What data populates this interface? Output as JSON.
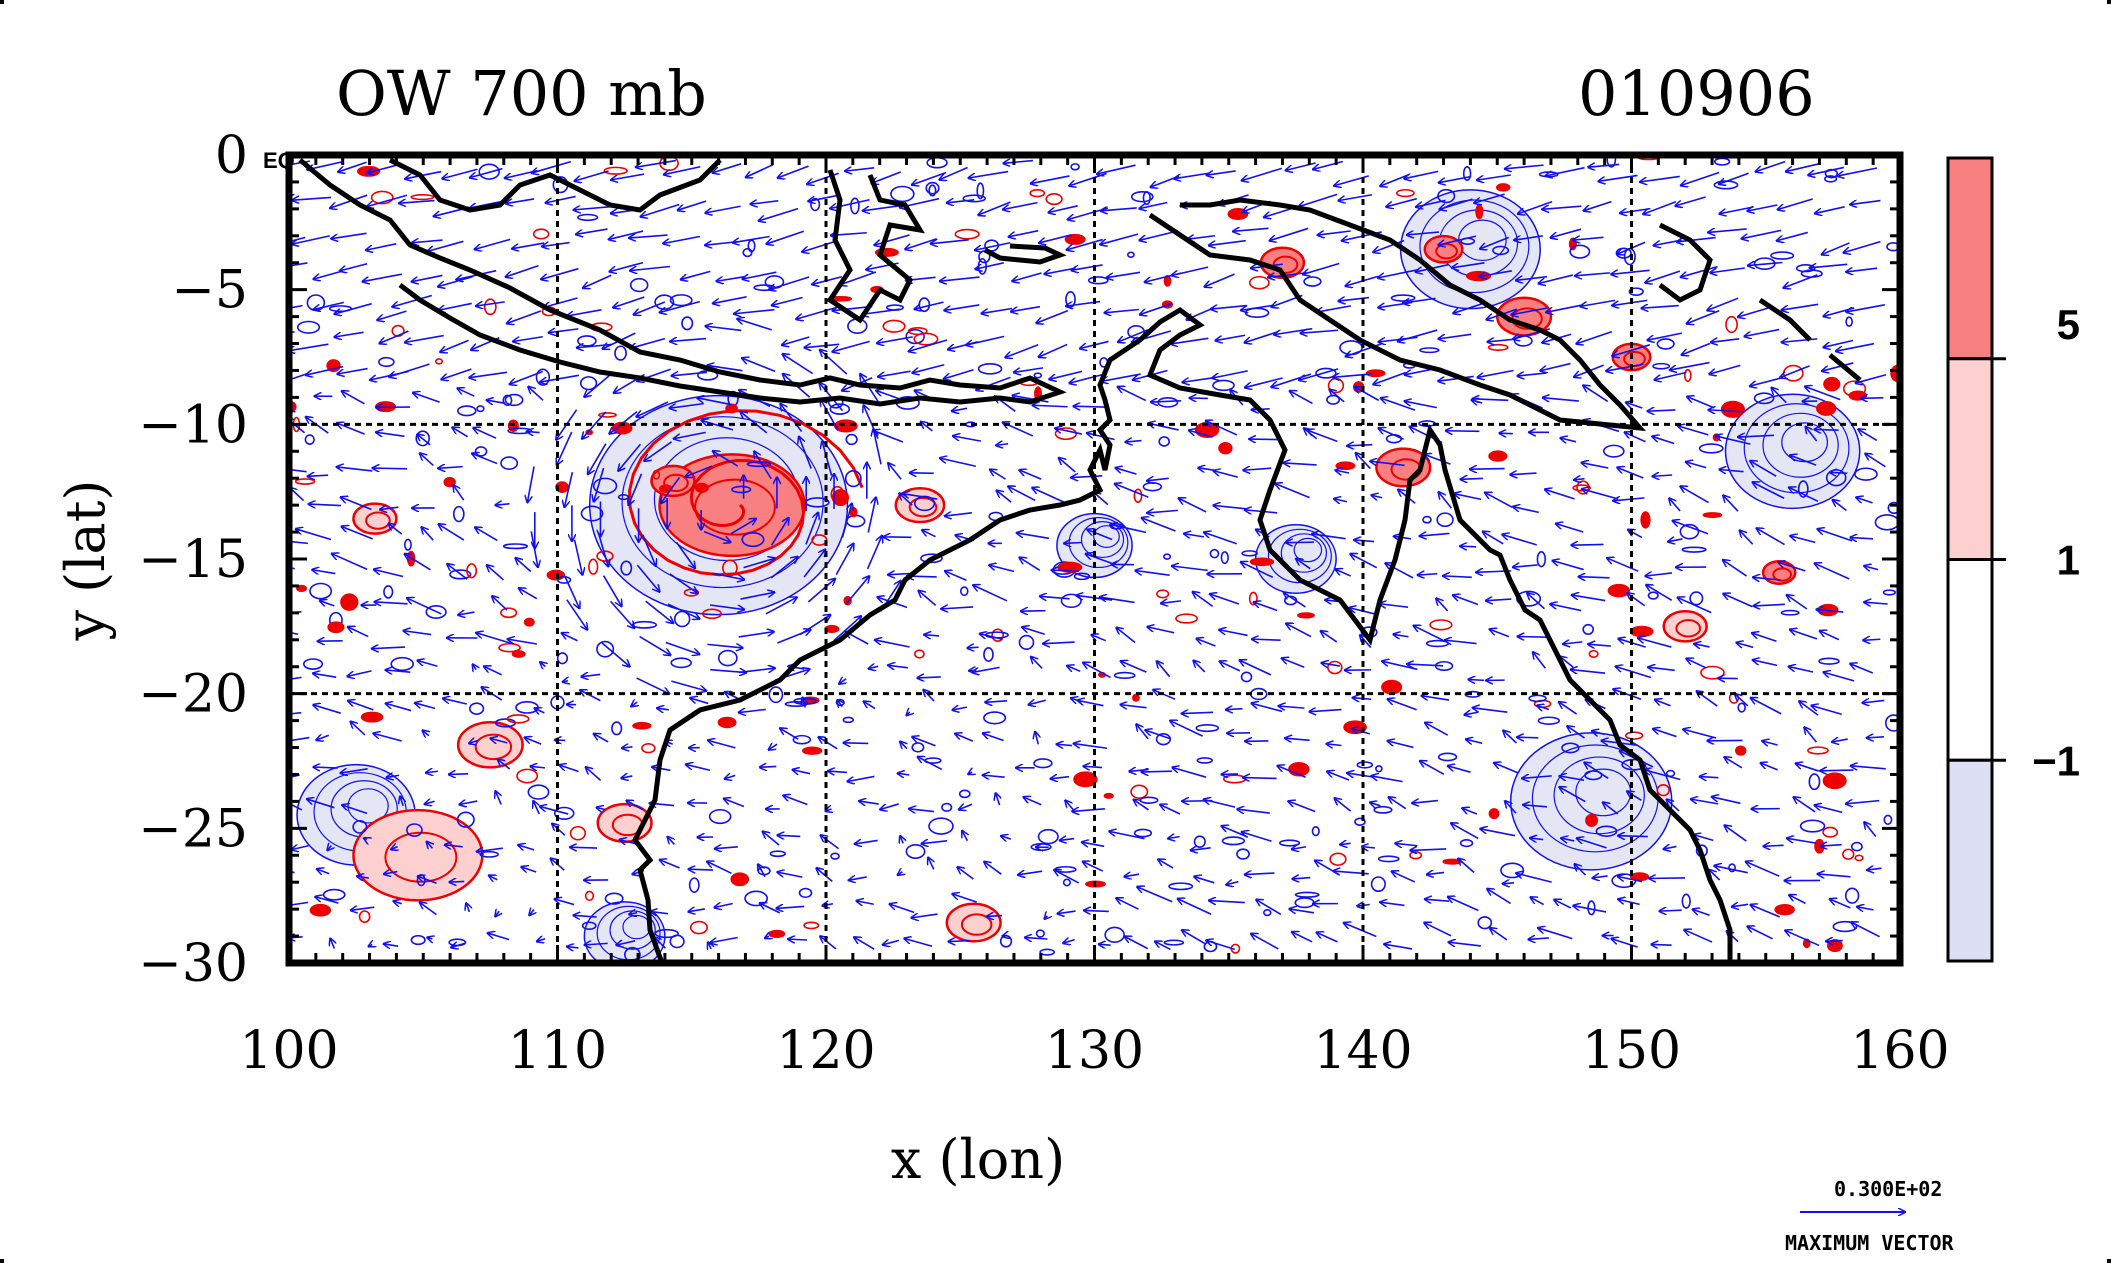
{
  "chart_data": {
    "type": "heatmap",
    "title": "OW 700 mb",
    "date_label": "010906",
    "xlabel": "x (lon)",
    "ylabel": "y (lat)",
    "xlim": [
      100,
      160
    ],
    "ylim": [
      -30,
      0
    ],
    "x_ticks": [
      100,
      110,
      120,
      130,
      140,
      150,
      160
    ],
    "y_ticks": [
      0,
      -5,
      -10,
      -15,
      -20,
      -25,
      -30
    ],
    "y_tick_labels": [
      "0",
      "−5",
      "−10",
      "−15",
      "−20",
      "−25",
      "−30"
    ],
    "x_tick_labels": [
      "100",
      "110",
      "120",
      "130",
      "140",
      "150",
      "160"
    ],
    "eq_label": "EQ",
    "grid_lon": [
      110,
      120,
      130,
      140,
      150
    ],
    "grid_lat": [
      -10,
      -20
    ],
    "colorbar": {
      "levels": [
        -1,
        1,
        5
      ],
      "level_labels": [
        "−1",
        "1",
        "5"
      ],
      "colors": [
        "#dde0f4",
        "#ffffff",
        "#fdd0d0",
        "#f98080"
      ]
    },
    "vector_reference": {
      "value_label": "0.300E+02",
      "caption": "MAXIMUM VECTOR",
      "color": "#1111ee"
    },
    "series": [
      {
        "name": "positive OW (red contours)",
        "color": "#ee0000",
        "features": [
          {
            "lon": 116.5,
            "lat": -13.0,
            "r": 2.7,
            "level": 5
          },
          {
            "lon": 114.3,
            "lat": -12.1,
            "r": 0.8,
            "level": 5
          },
          {
            "lon": 123.5,
            "lat": -13.0,
            "r": 0.9,
            "level": 1
          },
          {
            "lon": 104.8,
            "lat": -26.0,
            "r": 2.4,
            "level": 1
          },
          {
            "lon": 107.5,
            "lat": -21.9,
            "r": 1.2,
            "level": 1
          },
          {
            "lon": 112.5,
            "lat": -24.8,
            "r": 1.0,
            "level": 1
          },
          {
            "lon": 141.5,
            "lat": -11.6,
            "r": 1.0,
            "level": 5
          },
          {
            "lon": 146.0,
            "lat": -6.0,
            "r": 1.0,
            "level": 5
          },
          {
            "lon": 155.5,
            "lat": -15.5,
            "r": 0.6,
            "level": 5
          },
          {
            "lon": 152.0,
            "lat": -17.5,
            "r": 0.8,
            "level": 1
          },
          {
            "lon": 125.5,
            "lat": -28.5,
            "r": 1.0,
            "level": 1
          },
          {
            "lon": 137.0,
            "lat": -4.0,
            "r": 0.8,
            "level": 5
          },
          {
            "lon": 143.0,
            "lat": -3.5,
            "r": 0.7,
            "level": 5
          },
          {
            "lon": 103.2,
            "lat": -13.5,
            "r": 0.8,
            "level": 1
          },
          {
            "lon": 150.0,
            "lat": -7.5,
            "r": 0.7,
            "level": 5
          }
        ]
      },
      {
        "name": "negative OW (blue contours)",
        "color": "#1111ee",
        "features": [
          {
            "lon": 116.0,
            "lat": -13.0,
            "r": 4.8,
            "level": -1
          },
          {
            "lon": 102.5,
            "lat": -24.5,
            "r": 2.2,
            "level": -1
          },
          {
            "lon": 144.0,
            "lat": -3.5,
            "r": 2.6,
            "level": -1
          },
          {
            "lon": 148.5,
            "lat": -24.0,
            "r": 3.0,
            "level": -1
          },
          {
            "lon": 137.5,
            "lat": -15.0,
            "r": 1.5,
            "level": -1
          },
          {
            "lon": 130.0,
            "lat": -14.5,
            "r": 1.4,
            "level": -1
          },
          {
            "lon": 156.0,
            "lat": -11.0,
            "r": 2.5,
            "level": -1
          },
          {
            "lon": 112.5,
            "lat": -29.0,
            "r": 1.5,
            "level": -1
          }
        ]
      }
    ]
  }
}
